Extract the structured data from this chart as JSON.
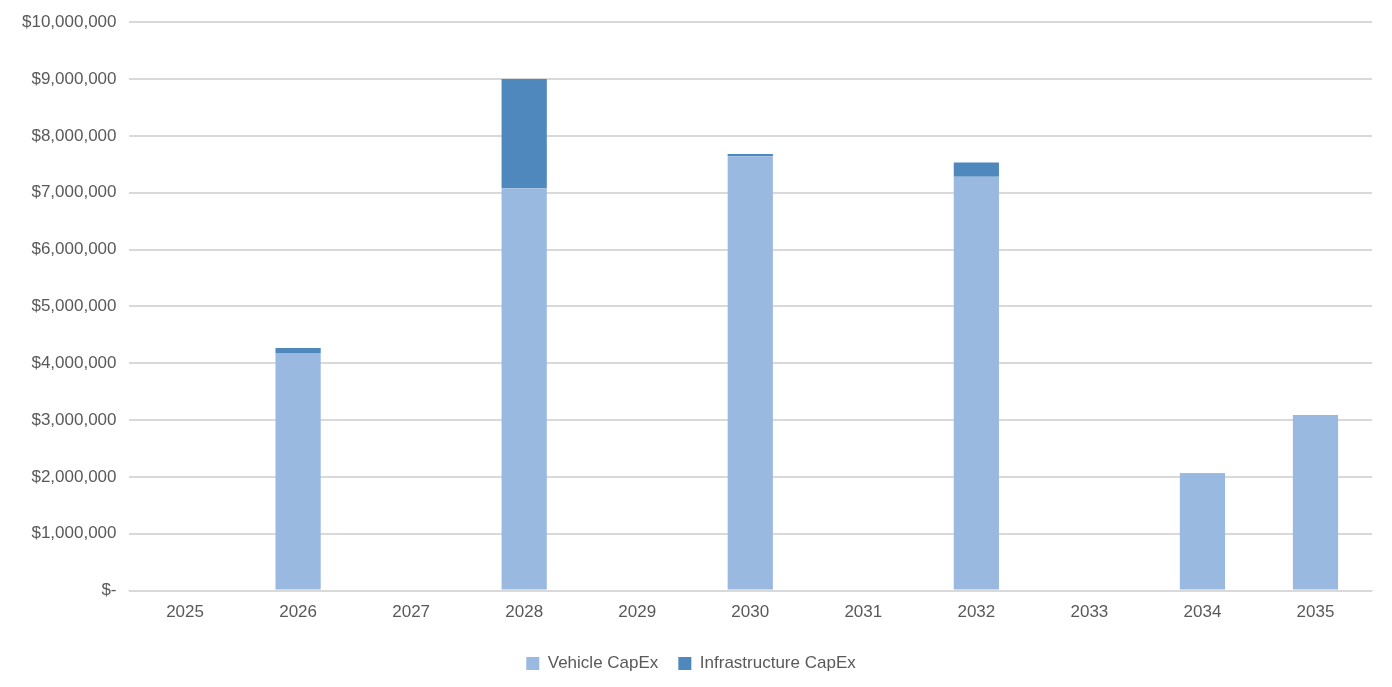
{
  "chart_data": {
    "type": "bar",
    "stacked": true,
    "categories": [
      "2025",
      "2026",
      "2027",
      "2028",
      "2029",
      "2030",
      "2031",
      "2032",
      "2033",
      "2034",
      "2035"
    ],
    "series": [
      {
        "name": "Vehicle CapEx",
        "color": "#9ab9e0",
        "values": [
          0,
          4180000,
          0,
          7080000,
          0,
          7640000,
          0,
          7280000,
          0,
          2060000,
          3090000
        ]
      },
      {
        "name": "Infrastructure CapEx",
        "color": "#4f88bd",
        "values": [
          0,
          90000,
          0,
          1920000,
          0,
          40000,
          0,
          250000,
          0,
          10000,
          0
        ]
      }
    ],
    "ylim": [
      0,
      10000000
    ],
    "yticks": [
      {
        "value": 0,
        "label": "$-"
      },
      {
        "value": 1000000,
        "label": "$1,000,000"
      },
      {
        "value": 2000000,
        "label": "$2,000,000"
      },
      {
        "value": 3000000,
        "label": "$3,000,000"
      },
      {
        "value": 4000000,
        "label": "$4,000,000"
      },
      {
        "value": 5000000,
        "label": "$5,000,000"
      },
      {
        "value": 6000000,
        "label": "$6,000,000"
      },
      {
        "value": 7000000,
        "label": "$7,000,000"
      },
      {
        "value": 8000000,
        "label": "$8,000,000"
      },
      {
        "value": 9000000,
        "label": "$9,000,000"
      },
      {
        "value": 10000000,
        "label": "$10,000,000"
      }
    ],
    "grid": "y",
    "legend": "bottom"
  }
}
